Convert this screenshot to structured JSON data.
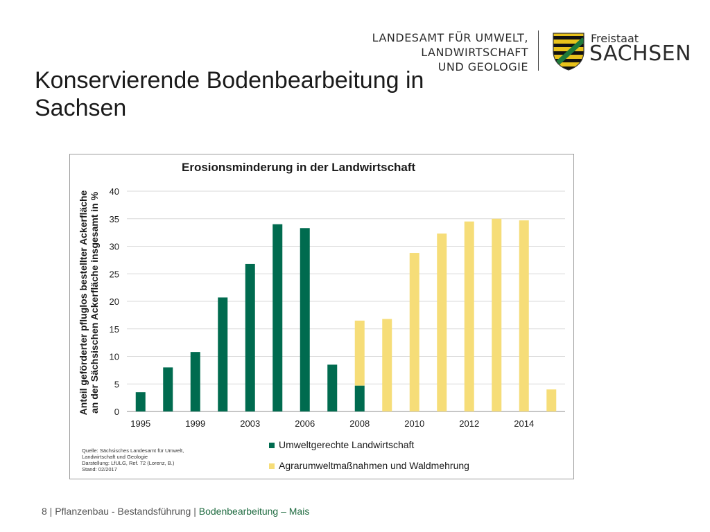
{
  "header": {
    "agency_lines": [
      "LANDESAMT FÜR UMWELT,",
      "LANDWIRTSCHAFT",
      "UND GEOLOGIE"
    ],
    "state_small": "Freistaat",
    "state_big": "SACHSEN"
  },
  "slide_title": "Konservierende Bodenbearbeitung in Sachsen",
  "source_lines": [
    "Quelle: Sächsisches Landesamt für Umwelt,",
    "Landwirtschaft und Geologie",
    "Darstellung: LfULG, Ref. 72 (Lorenz, B.)",
    "Stand: 02/2017"
  ],
  "footer": {
    "prefix": "8 | Pflanzenbau - Bestandsführung | ",
    "highlight": "Bodenbearbeitung – Mais"
  },
  "colors": {
    "green": "#006B4F",
    "yellow": "#F6DD78",
    "grid": "#d9d9d9",
    "crest_yellow": "#E8C21B",
    "crest_green": "#1E7A3A"
  },
  "chart_data": {
    "type": "bar",
    "stacked": true,
    "title": "Erosionsminderung in der Landwirtschaft",
    "ylabel": "Anteil geförderter pfluglos bestellter Ackerfläche an der Sächsischen Ackerfläche insgesamt in %",
    "ylabel_lines": [
      "Anteil geförderter pfluglos bestellter Ackerfläche",
      "an der Sächsischen Ackerfläche insgesamt in %"
    ],
    "ylim": [
      0,
      40
    ],
    "yticks": [
      0,
      5,
      10,
      15,
      20,
      25,
      30,
      35,
      40
    ],
    "grid": true,
    "legend_position": "bottom",
    "categories": [
      "1995",
      "1997",
      "1999",
      "2001",
      "2003",
      "2004",
      "2006",
      "2007",
      "2008",
      "2009",
      "2010",
      "2011",
      "2012",
      "2013",
      "2014",
      "2015"
    ],
    "x_tick_labels": [
      "1995",
      "1999",
      "2003",
      "2006",
      "2008",
      "2010",
      "2012",
      "2014"
    ],
    "series": [
      {
        "name": "Umweltgerechte Landwirtschaft",
        "values": [
          3.5,
          8,
          10.8,
          20.7,
          26.8,
          34,
          33.3,
          8.5,
          4.7,
          0,
          0,
          0,
          0,
          0,
          0,
          0
        ]
      },
      {
        "name": "Agrarumweltmaßnahmen und Waldmehrung",
        "values": [
          0,
          0,
          0,
          0,
          0,
          0,
          0,
          0,
          11.8,
          16.8,
          28.8,
          32.3,
          34.5,
          35,
          34.7,
          4
        ]
      }
    ]
  }
}
